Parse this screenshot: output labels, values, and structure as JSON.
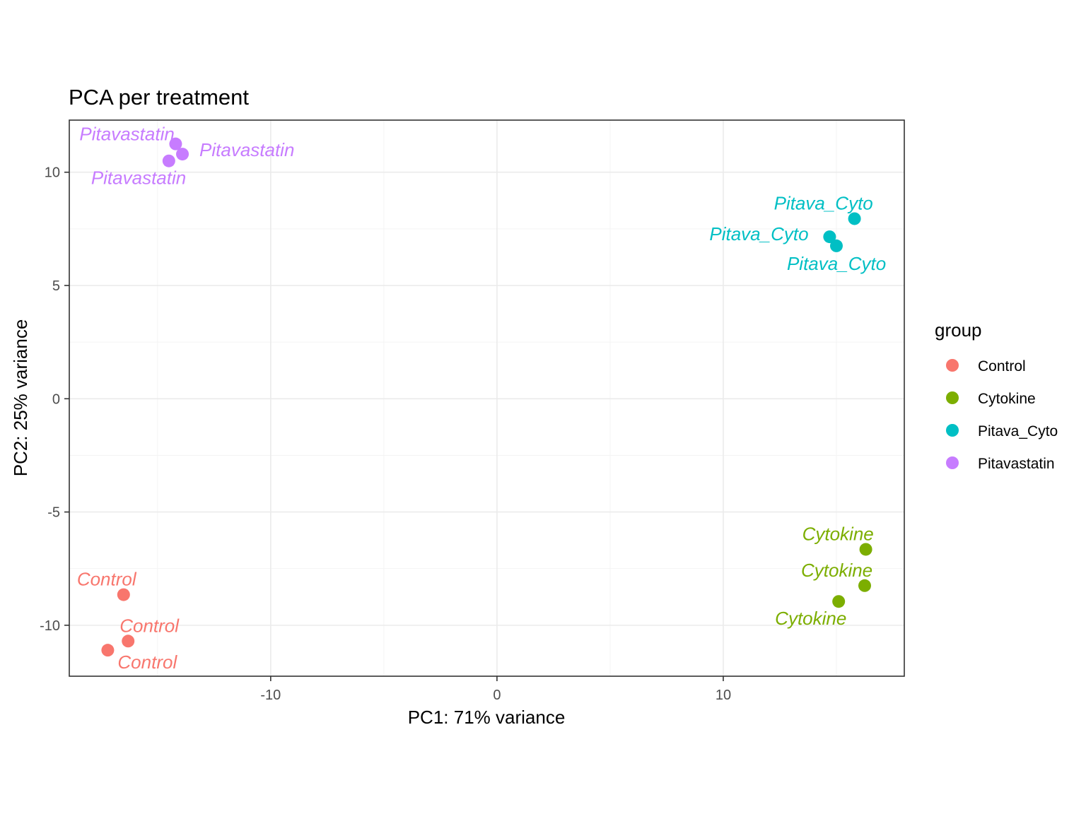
{
  "chart_data": {
    "type": "scatter",
    "title": "PCA per treatment",
    "xlabel": "PC1: 71% variance",
    "ylabel": "PC2: 25% variance",
    "xlim": [
      -18.9,
      18.0
    ],
    "ylim": [
      -12.25,
      12.3
    ],
    "x_ticks": [
      -10,
      0,
      10
    ],
    "x_tick_labels": [
      "-10",
      "0",
      "10"
    ],
    "y_ticks": [
      -10,
      -5,
      0,
      5,
      10
    ],
    "y_tick_labels": [
      "-10",
      "-5",
      "0",
      "5",
      "10"
    ],
    "grid": true,
    "legend": {
      "title": "group",
      "position": "right"
    },
    "series": [
      {
        "name": "Control",
        "color": "#F8766D",
        "points": [
          {
            "x": -16.5,
            "y": -8.65,
            "label": "Control"
          },
          {
            "x": -16.3,
            "y": -10.7,
            "label": "Control"
          },
          {
            "x": -17.2,
            "y": -11.1,
            "label": "Control"
          }
        ]
      },
      {
        "name": "Cytokine",
        "color": "#7CAE00",
        "points": [
          {
            "x": 16.3,
            "y": -6.65,
            "label": "Cytokine"
          },
          {
            "x": 16.25,
            "y": -8.25,
            "label": "Cytokine"
          },
          {
            "x": 15.1,
            "y": -8.95,
            "label": "Cytokine"
          }
        ]
      },
      {
        "name": "Pitava_Cyto",
        "color": "#00BFC4",
        "points": [
          {
            "x": 15.8,
            "y": 7.95,
            "label": "Pitava_Cyto"
          },
          {
            "x": 14.7,
            "y": 7.15,
            "label": "Pitava_Cyto"
          },
          {
            "x": 15.0,
            "y": 6.75,
            "label": "Pitava_Cyto"
          }
        ]
      },
      {
        "name": "Pitavastatin",
        "color": "#C77CFF",
        "points": [
          {
            "x": -14.2,
            "y": 11.25,
            "label": "Pitavastatin"
          },
          {
            "x": -13.9,
            "y": 10.8,
            "label": "Pitavastatin"
          },
          {
            "x": -14.5,
            "y": 10.5,
            "label": "Pitavastatin"
          }
        ]
      }
    ]
  }
}
